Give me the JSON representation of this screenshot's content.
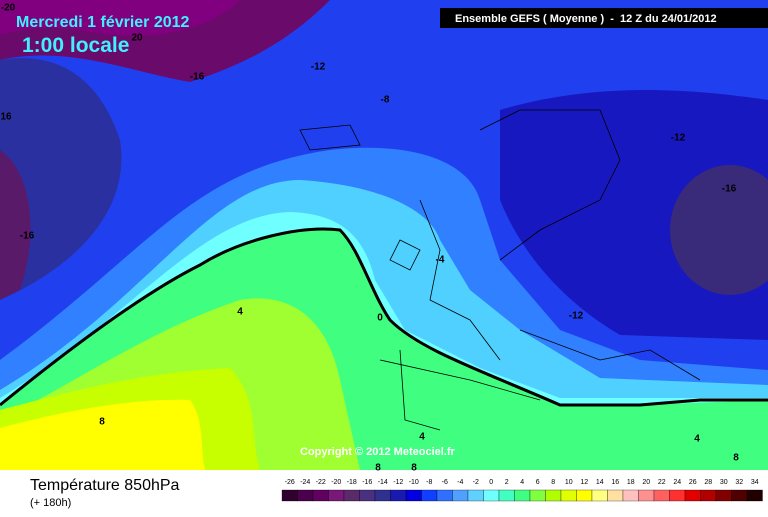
{
  "header": {
    "date": "Mercredi 1 février 2012",
    "time": "1:00 locale",
    "model": "Ensemble GEFS ( Moyenne )  -  12 Z du 24/01/2012"
  },
  "map": {
    "copyright": "Copyright © 2012 Meteociel.fr",
    "contour_labels": [
      -20,
      20,
      -16,
      -12,
      -8,
      16,
      -12,
      -16,
      -16,
      -4,
      -12,
      4,
      0,
      8,
      4,
      4,
      8,
      8,
      8
    ]
  },
  "footer": {
    "title": "Température 850hPa",
    "subtitle": "(+ 180h)"
  },
  "legend": {
    "values": [
      -26,
      -24,
      -22,
      -20,
      -18,
      -16,
      -14,
      -12,
      -10,
      -8,
      -6,
      -4,
      -2,
      0,
      2,
      4,
      6,
      8,
      10,
      12,
      14,
      16,
      18,
      20,
      22,
      24,
      26,
      28,
      30,
      32,
      34
    ],
    "colors": [
      "#300030",
      "#4a004a",
      "#600060",
      "#781878",
      "#5a2a6a",
      "#4a3080",
      "#303090",
      "#1a1ab0",
      "#0000e0",
      "#1040ff",
      "#3070ff",
      "#50a0ff",
      "#60d0ff",
      "#70ffff",
      "#40ffc0",
      "#40ff80",
      "#80ff40",
      "#b0ff00",
      "#e0ff00",
      "#ffff00",
      "#ffff80",
      "#ffe0a0",
      "#ffc0c0",
      "#ff9090",
      "#ff6060",
      "#ff3030",
      "#e00000",
      "#b00000",
      "#800000",
      "#500000",
      "#200000"
    ]
  }
}
